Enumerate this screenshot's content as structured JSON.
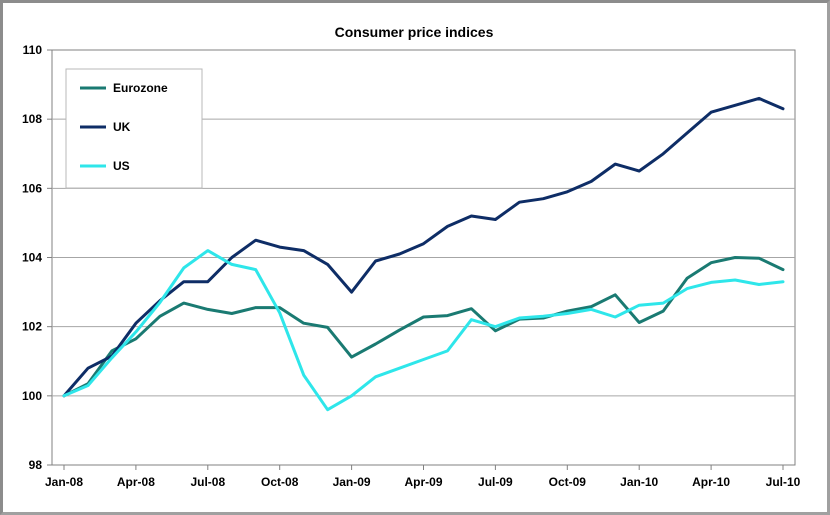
{
  "chart_data": {
    "type": "line",
    "title": "Consumer price indices",
    "xlabel": "",
    "ylabel": "",
    "ylim": [
      98,
      110
    ],
    "yticks": [
      98,
      100,
      102,
      104,
      106,
      108,
      110
    ],
    "x_tick_labels": [
      "Jan-08",
      "Apr-08",
      "Jul-08",
      "Oct-08",
      "Jan-09",
      "Apr-09",
      "Jul-09",
      "Oct-09",
      "Jan-10",
      "Apr-10",
      "Jul-10"
    ],
    "x_tick_every": 3,
    "categories": [
      "Jan-08",
      "Feb-08",
      "Mar-08",
      "Apr-08",
      "May-08",
      "Jun-08",
      "Jul-08",
      "Aug-08",
      "Sep-08",
      "Oct-08",
      "Nov-08",
      "Dec-08",
      "Jan-09",
      "Feb-09",
      "Mar-09",
      "Apr-09",
      "May-09",
      "Jun-09",
      "Jul-09",
      "Aug-09",
      "Sep-09",
      "Oct-09",
      "Nov-09",
      "Dec-09",
      "Jan-10",
      "Feb-10",
      "Mar-10",
      "Apr-10",
      "May-10",
      "Jun-10",
      "Jul-10"
    ],
    "legend_position": "top-left",
    "grid": true,
    "series": [
      {
        "name": "Eurozone",
        "color": "#1a7a72",
        "values": [
          100.0,
          100.35,
          101.3,
          101.65,
          102.3,
          102.68,
          102.5,
          102.38,
          102.55,
          102.55,
          102.1,
          101.98,
          101.12,
          101.5,
          101.9,
          102.28,
          102.32,
          102.52,
          101.88,
          102.22,
          102.25,
          102.45,
          102.58,
          102.92,
          102.12,
          102.45,
          103.4,
          103.85,
          104.0,
          103.98,
          103.65
        ]
      },
      {
        "name": "UK",
        "color": "#0e2d66",
        "values": [
          100.0,
          100.8,
          101.15,
          102.1,
          102.75,
          103.3,
          103.3,
          104.0,
          104.5,
          104.3,
          104.2,
          103.8,
          103.0,
          103.9,
          104.1,
          104.4,
          104.9,
          105.2,
          105.1,
          105.6,
          105.7,
          105.9,
          106.2,
          106.7,
          106.5,
          107.0,
          107.6,
          108.2,
          108.4,
          108.6,
          108.3
        ]
      },
      {
        "name": "US",
        "color": "#2ee6ea",
        "values": [
          100.0,
          100.3,
          101.1,
          101.85,
          102.7,
          103.7,
          104.2,
          103.8,
          103.65,
          102.4,
          100.6,
          99.6,
          100.0,
          100.55,
          100.8,
          101.05,
          101.3,
          102.2,
          102.0,
          102.25,
          102.3,
          102.38,
          102.5,
          102.28,
          102.62,
          102.68,
          103.1,
          103.28,
          103.35,
          103.22,
          103.3
        ]
      }
    ]
  }
}
